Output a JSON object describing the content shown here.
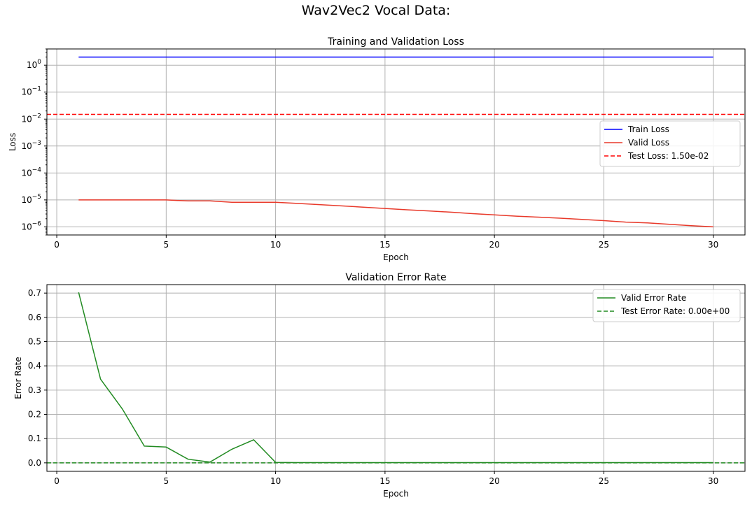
{
  "figure_title": "Wav2Vec2 Vocal Data:",
  "colors": {
    "train": "#0000ff",
    "valid_loss": "#e8392a",
    "test_loss": "#ff0000",
    "error": "#228b22"
  },
  "chart_data": [
    {
      "type": "line",
      "title": "Training and Validation Loss",
      "xlabel": "Epoch",
      "ylabel": "Loss",
      "yscale": "log",
      "grid": true,
      "legend_position": "center-right",
      "xlim": [
        -0.45,
        31.45
      ],
      "ylim": [
        5e-07,
        4
      ],
      "xticks": [
        0,
        5,
        10,
        15,
        20,
        25,
        30
      ],
      "yticks": [
        1e-06,
        1e-05,
        0.0001,
        0.001,
        0.01,
        0.1,
        1
      ],
      "ytick_labels": [
        [
          "10",
          "−6"
        ],
        [
          "10",
          "−5"
        ],
        [
          "10",
          "−4"
        ],
        [
          "10",
          "−3"
        ],
        [
          "10",
          "−2"
        ],
        [
          "10",
          "−1"
        ],
        [
          "10",
          "0"
        ]
      ],
      "x": [
        1,
        2,
        3,
        4,
        5,
        6,
        7,
        8,
        9,
        10,
        11,
        12,
        13,
        14,
        15,
        16,
        17,
        18,
        19,
        20,
        21,
        22,
        23,
        24,
        25,
        26,
        27,
        28,
        29,
        30
      ],
      "series": [
        {
          "name": "Train Loss",
          "style": "solid",
          "color": "#0000ff",
          "values": [
            2.0,
            2.0,
            2.0,
            2.0,
            2.0,
            2.0,
            2.0,
            2.0,
            2.0,
            2.0,
            2.0,
            2.0,
            2.0,
            2.0,
            2.0,
            2.0,
            2.0,
            2.0,
            2.0,
            2.0,
            2.0,
            2.0,
            2.0,
            2.0,
            2.0,
            2.0,
            2.0,
            2.0,
            2.0,
            2.0
          ]
        },
        {
          "name": "Valid Loss",
          "style": "solid",
          "color": "#e8392a",
          "values": [
            1e-05,
            1e-05,
            1e-05,
            1e-05,
            1e-05,
            9.2e-06,
            9.2e-06,
            8.2e-06,
            8.2e-06,
            8.2e-06,
            7.4e-06,
            6.7e-06,
            6e-06,
            5.4e-06,
            4.8e-06,
            4.3e-06,
            3.9e-06,
            3.5e-06,
            3.1e-06,
            2.8e-06,
            2.5e-06,
            2.3e-06,
            2.1e-06,
            1.9e-06,
            1.7e-06,
            1.5e-06,
            1.4e-06,
            1.25e-06,
            1.1e-06,
            1e-06
          ]
        }
      ],
      "hlines": [
        {
          "name": "Test Loss: 1.50e-02",
          "value": 0.015,
          "style": "dashed",
          "color": "#ff0000"
        }
      ]
    },
    {
      "type": "line",
      "title": "Validation Error Rate",
      "xlabel": "Epoch",
      "ylabel": "Error Rate",
      "grid": true,
      "legend_position": "top-right",
      "xlim": [
        -0.45,
        31.45
      ],
      "ylim": [
        -0.035,
        0.735
      ],
      "xticks": [
        0,
        5,
        10,
        15,
        20,
        25,
        30
      ],
      "yticks": [
        0.0,
        0.1,
        0.2,
        0.3,
        0.4,
        0.5,
        0.6,
        0.7
      ],
      "ytick_labels": [
        "0.0",
        "0.1",
        "0.2",
        "0.3",
        "0.4",
        "0.5",
        "0.6",
        "0.7"
      ],
      "x": [
        1,
        2,
        3,
        4,
        5,
        6,
        7,
        8,
        9,
        10,
        11,
        12,
        13,
        14,
        15,
        16,
        17,
        18,
        19,
        20,
        21,
        22,
        23,
        24,
        25,
        26,
        27,
        28,
        29,
        30
      ],
      "series": [
        {
          "name": "Valid Error Rate",
          "style": "solid",
          "color": "#228b22",
          "values": [
            0.703,
            0.345,
            0.222,
            0.069,
            0.065,
            0.015,
            0.003,
            0.056,
            0.095,
            0.002,
            0.001,
            0.001,
            0.001,
            0.001,
            0.001,
            0.001,
            0.001,
            0.001,
            0.001,
            0.001,
            0.001,
            0.001,
            0.001,
            0.001,
            0.001,
            0.001,
            0.001,
            0.001,
            0.001,
            0.001
          ]
        }
      ],
      "hlines": [
        {
          "name": "Test Error Rate: 0.00e+00",
          "value": 0.0,
          "style": "dashed",
          "color": "#228b22"
        }
      ]
    }
  ]
}
